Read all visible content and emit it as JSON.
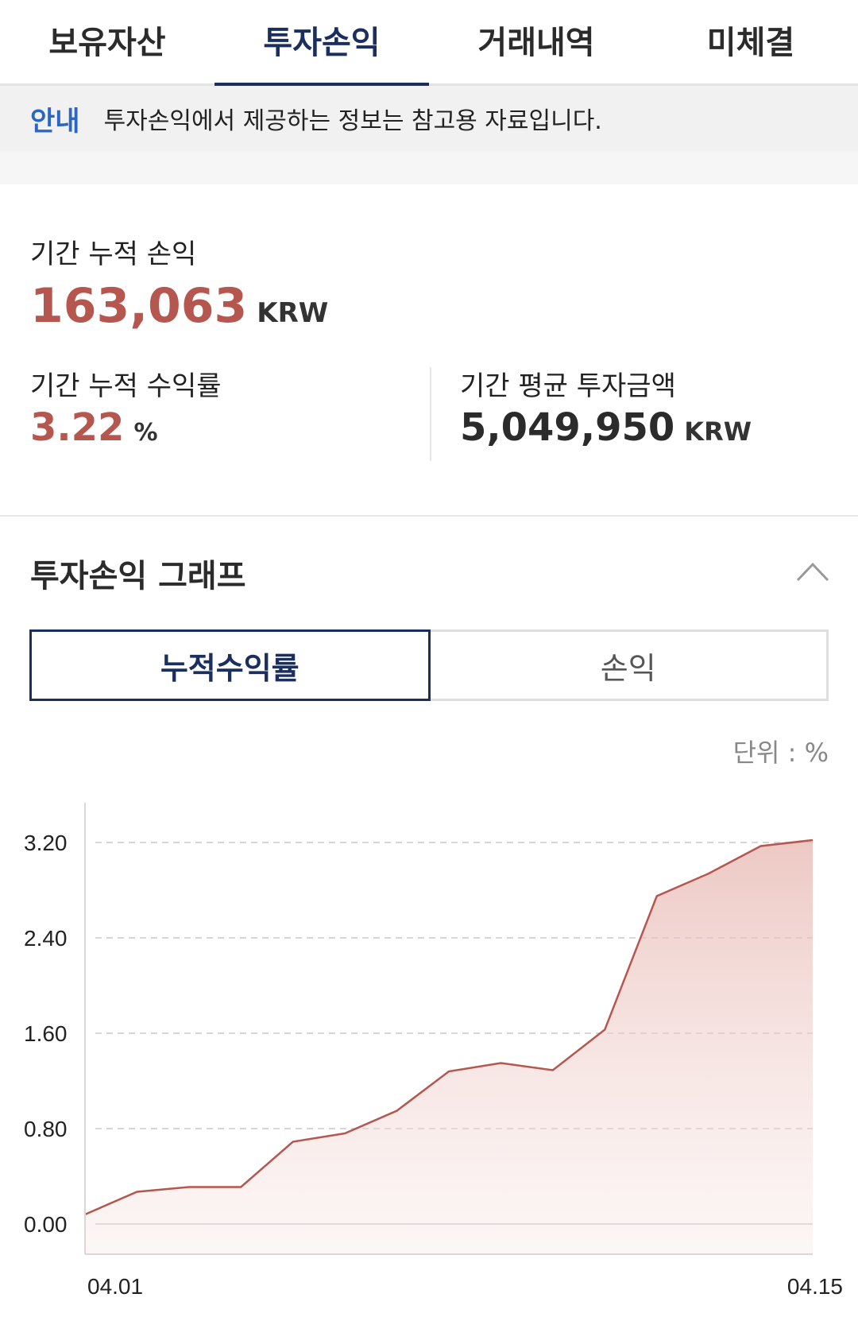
{
  "tabs": [
    {
      "label": "보유자산",
      "active": false
    },
    {
      "label": "투자손익",
      "active": true
    },
    {
      "label": "거래내역",
      "active": false
    },
    {
      "label": "미체결",
      "active": false
    }
  ],
  "notice": {
    "label": "안내",
    "text": "투자손익에서 제공하는 정보는 참고용 자료입니다."
  },
  "summary": {
    "cumulative_pl_label": "기간 누적 손익",
    "cumulative_pl_value": "163,063",
    "cumulative_pl_unit": "KRW",
    "return_rate_label": "기간 누적 수익률",
    "return_rate_value": "3.22",
    "return_rate_unit": "%",
    "avg_invest_label": "기간 평균 투자금액",
    "avg_invest_value": "5,049,950",
    "avg_invest_unit": "KRW"
  },
  "graph": {
    "title": "투자손익 그래프",
    "toggle": [
      "누적수익률",
      "손익"
    ],
    "unit_label": "단위 : %"
  },
  "colors": {
    "accent_navy": "#1b2f5e",
    "profit_red": "#b6574f",
    "notice_blue": "#2b66c2"
  },
  "chart_data": {
    "type": "area",
    "x": [
      "04.01",
      "04.02",
      "04.03",
      "04.04",
      "04.05",
      "04.06",
      "04.07",
      "04.08",
      "04.09",
      "04.10",
      "04.11",
      "04.12",
      "04.13",
      "04.14",
      "04.15"
    ],
    "x_tick_labels": [
      "04.01",
      "04.15"
    ],
    "values": [
      0.08,
      0.27,
      0.31,
      0.31,
      0.69,
      0.76,
      0.95,
      1.28,
      1.35,
      1.29,
      1.63,
      2.75,
      2.94,
      3.17,
      3.22
    ],
    "yticks": [
      "3.20",
      "2.40",
      "1.60",
      "0.80",
      "0.00"
    ],
    "ylim": [
      0,
      3.2
    ],
    "grid": true
  }
}
